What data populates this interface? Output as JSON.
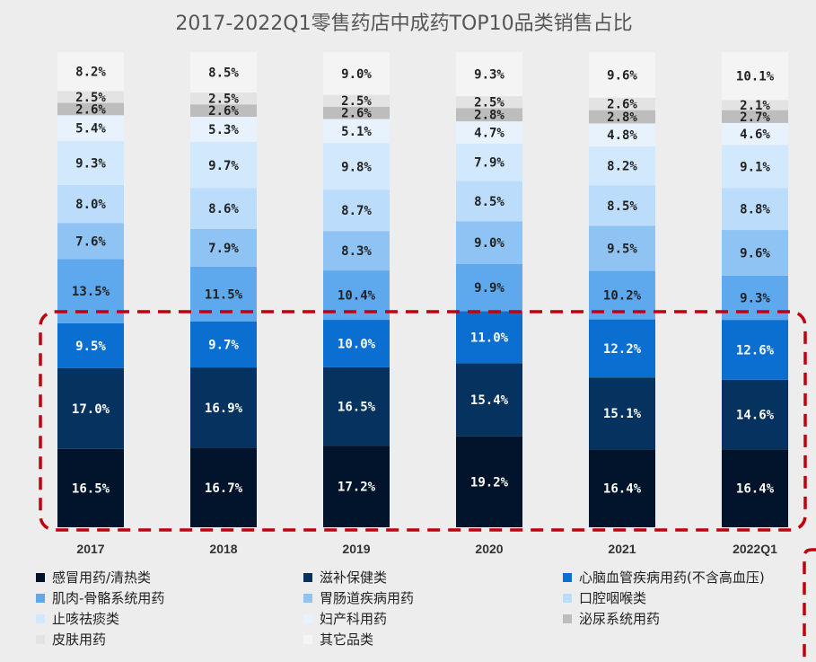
{
  "chart_data": {
    "type": "stacked_bar_100",
    "title": "2017-2022Q1零售药店中成药TOP10品类销售占比",
    "categories": [
      "2017",
      "2018",
      "2019",
      "2020",
      "2021",
      "2022Q1"
    ],
    "series": [
      {
        "name": "感冒用药/清热类",
        "color": "#02142b",
        "label_color": "#ffffff",
        "values": [
          16.5,
          16.7,
          17.2,
          19.2,
          16.4,
          16.4
        ]
      },
      {
        "name": "滋补保健类",
        "color": "#06325f",
        "label_color": "#ffffff",
        "values": [
          17.0,
          16.9,
          16.5,
          15.4,
          15.1,
          14.6
        ]
      },
      {
        "name": "心脑血管疾病用药(不含高血压)",
        "color": "#0a6fd1",
        "label_color": "#ffffff",
        "values": [
          9.5,
          9.7,
          10.0,
          11.0,
          12.2,
          12.6
        ]
      },
      {
        "name": "肌肉-骨骼系统用药",
        "color": "#5ea9ee",
        "label_color": "#222222",
        "values": [
          13.5,
          11.5,
          10.4,
          9.9,
          10.2,
          9.3
        ]
      },
      {
        "name": "胃肠道疾病用药",
        "color": "#8ec3f3",
        "label_color": "#222222",
        "values": [
          7.6,
          7.9,
          8.3,
          9.0,
          9.5,
          9.6
        ]
      },
      {
        "name": "口腔咽喉类",
        "color": "#bcdcfb",
        "label_color": "#222222",
        "values": [
          8.0,
          8.6,
          8.7,
          8.5,
          8.5,
          8.8
        ]
      },
      {
        "name": "止咳祛痰类",
        "color": "#d2e8fc",
        "label_color": "#222222",
        "values": [
          9.3,
          9.7,
          9.8,
          7.9,
          8.2,
          9.1
        ]
      },
      {
        "name": "妇产科用药",
        "color": "#e8f2fd",
        "label_color": "#222222",
        "values": [
          5.4,
          5.3,
          5.1,
          4.7,
          4.8,
          4.6
        ]
      },
      {
        "name": "泌尿系统用药",
        "color": "#bdbdbd",
        "label_color": "#222222",
        "values": [
          2.6,
          2.6,
          2.6,
          2.8,
          2.8,
          2.7
        ]
      },
      {
        "name": "皮肤用药",
        "color": "#e3e3e3",
        "label_color": "#222222",
        "values": [
          2.5,
          2.5,
          2.5,
          2.5,
          2.6,
          2.1
        ]
      },
      {
        "name": "其它品类",
        "color": "#f4f4f4",
        "label_color": "#222222",
        "values": [
          8.2,
          8.5,
          9.0,
          9.3,
          9.6,
          10.1
        ]
      }
    ],
    "value_suffix": "%",
    "legend_position": "bottom",
    "highlight": {
      "style": "dashed-rounded-box",
      "color": "#c0000c",
      "series_covered": [
        "感冒用药/清热类",
        "滋补保健类",
        "心脑血管疾病用药(不含高血压)"
      ]
    }
  }
}
